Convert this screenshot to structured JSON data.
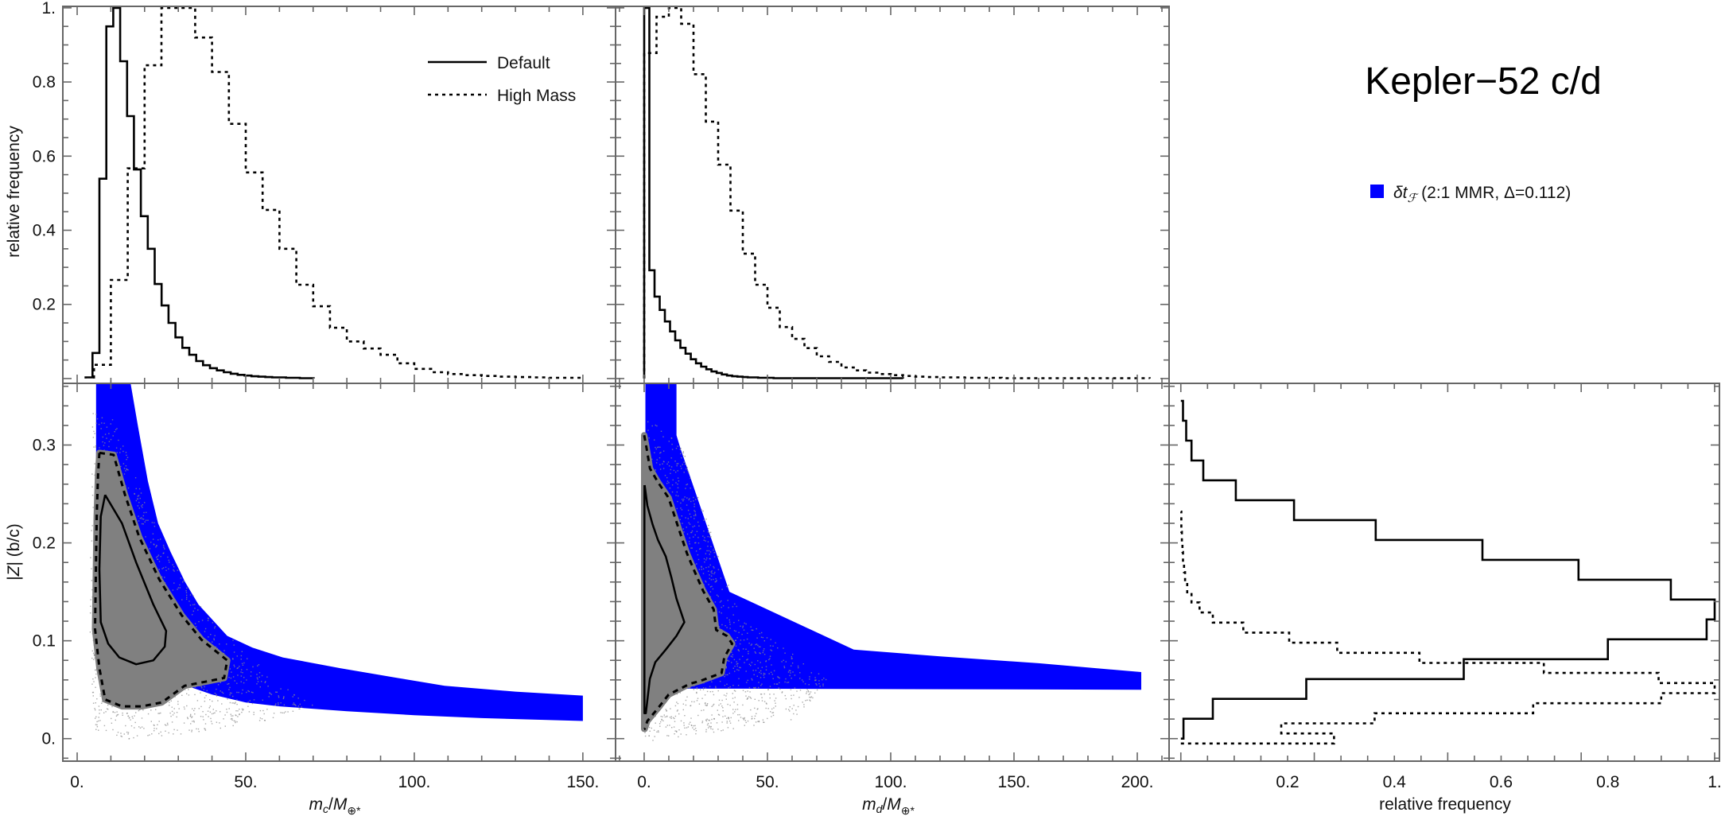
{
  "title": "Kepler−52 c/d",
  "legend": {
    "series": [
      {
        "name": "Default",
        "style": "solid"
      },
      {
        "name": "High Mass",
        "style": "dashed"
      }
    ],
    "band": {
      "symbol": "δt",
      "sub": "ℱ",
      "text": " (2:1 MMR, Δ=0.112)",
      "color": "#0000ff"
    }
  },
  "colors": {
    "band": "#0000ff",
    "samples": "#808080",
    "lines": "#000000",
    "frame": "#666666"
  },
  "chart_data": [
    {
      "id": "hist-mc",
      "type": "histogram",
      "orientation": "vertical",
      "xlim": [
        -4.25,
        159.7
      ],
      "ylim": [
        -0.013,
        1.004
      ],
      "ylabel": "relative frequency",
      "yticks": [
        {
          "v": 0.2,
          "label": "0.2"
        },
        {
          "v": 0.4,
          "label": "0.4"
        },
        {
          "v": 0.6,
          "label": "0.6"
        },
        {
          "v": 0.8,
          "label": "0.8"
        },
        {
          "v": 1.0,
          "label": "1."
        }
      ],
      "series": [
        {
          "name": "Default",
          "style": "solid",
          "bin_start": 2.5,
          "bin_width": 2.05,
          "values": [
            0.003,
            0.069,
            0.539,
            0.95,
            1.0,
            0.856,
            0.708,
            0.564,
            0.438,
            0.35,
            0.255,
            0.197,
            0.15,
            0.111,
            0.083,
            0.064,
            0.047,
            0.036,
            0.028,
            0.022,
            0.017,
            0.013,
            0.01,
            0.008,
            0.006,
            0.005,
            0.004,
            0.003,
            0.003,
            0.002,
            0.002,
            0.001,
            0.001
          ]
        },
        {
          "name": "High Mass",
          "style": "dashed",
          "bin_start": 5,
          "bin_width": 5,
          "values": [
            0.037,
            0.266,
            0.567,
            0.845,
            1.0,
            1.0,
            0.92,
            0.827,
            0.687,
            0.556,
            0.455,
            0.35,
            0.253,
            0.195,
            0.137,
            0.1,
            0.081,
            0.064,
            0.041,
            0.026,
            0.017,
            0.012,
            0.009,
            0.007,
            0.005,
            0.004,
            0.003,
            0.002,
            0.002
          ]
        }
      ]
    },
    {
      "id": "hist-md",
      "type": "histogram",
      "orientation": "vertical",
      "xlim": [
        -11.6,
        212.9
      ],
      "ylim": [
        -0.013,
        1.004
      ],
      "series": [
        {
          "name": "Default",
          "style": "solid",
          "bin_start": 0,
          "bin_width": 2.1,
          "values": [
            1.0,
            0.292,
            0.221,
            0.185,
            0.154,
            0.127,
            0.103,
            0.083,
            0.067,
            0.052,
            0.041,
            0.032,
            0.025,
            0.019,
            0.015,
            0.011,
            0.008,
            0.006,
            0.005,
            0.004,
            0.003,
            0.003,
            0.002,
            0.002,
            0.002,
            0.001,
            0.001,
            0.001,
            0.001,
            0.001,
            0.001,
            0.001,
            0.001,
            0.001,
            0.001,
            0.001,
            0.001,
            0.001,
            0.001,
            0.001,
            0.001,
            0.001,
            0.001,
            0.001,
            0.001,
            0.001,
            0.001,
            0.001,
            0.001,
            0.001
          ]
        },
        {
          "name": "High Mass",
          "style": "dashed",
          "bin_start": 0,
          "bin_width": 5,
          "values": [
            0.878,
            0.976,
            1.0,
            0.957,
            0.821,
            0.693,
            0.577,
            0.453,
            0.337,
            0.253,
            0.191,
            0.139,
            0.107,
            0.082,
            0.06,
            0.045,
            0.03,
            0.022,
            0.016,
            0.012,
            0.009,
            0.007,
            0.005,
            0.004,
            0.003,
            0.003,
            0.002,
            0.002,
            0.002,
            0.001,
            0.001,
            0.001,
            0.001,
            0.001,
            0.001,
            0.001,
            0.001,
            0.001,
            0.001,
            0.001,
            0.001
          ]
        }
      ]
    },
    {
      "id": "scatter-mc-z",
      "type": "scatter",
      "xlim": [
        -4.25,
        159.7
      ],
      "ylim": [
        -0.023,
        0.363
      ],
      "ylabel": {
        "pre": "|",
        "var": "Z",
        "post": "| (b/c)"
      },
      "xlabel": {
        "m": "m",
        "sub": "c",
        "mid": "/",
        "M": "M",
        "sub2": "⊕*"
      },
      "xticks": [
        {
          "v": 0,
          "label": "0."
        },
        {
          "v": 50,
          "label": "50."
        },
        {
          "v": 100,
          "label": "100."
        },
        {
          "v": 150,
          "label": "150."
        }
      ],
      "yticks": [
        {
          "v": 0,
          "label": "0."
        },
        {
          "v": 0.1,
          "label": "0.1"
        },
        {
          "v": 0.2,
          "label": "0.2"
        },
        {
          "v": 0.3,
          "label": "0.3"
        }
      ],
      "band_upper": [
        [
          15.8,
          0.364
        ],
        [
          18,
          0.32
        ],
        [
          21,
          0.263
        ],
        [
          24,
          0.22
        ],
        [
          27.7,
          0.191
        ],
        [
          32,
          0.16
        ],
        [
          36,
          0.137
        ],
        [
          44.5,
          0.105
        ],
        [
          52,
          0.093
        ],
        [
          61,
          0.083
        ],
        [
          78,
          0.072
        ],
        [
          95,
          0.062
        ],
        [
          109,
          0.054
        ],
        [
          130,
          0.048
        ],
        [
          150,
          0.044
        ]
      ],
      "band_lower": [
        [
          150,
          0.018
        ],
        [
          120,
          0.021
        ],
        [
          100,
          0.024
        ],
        [
          80,
          0.028
        ],
        [
          60,
          0.033
        ],
        [
          50,
          0.037
        ],
        [
          40,
          0.045
        ],
        [
          30,
          0.057
        ],
        [
          20,
          0.085
        ],
        [
          12,
          0.14
        ],
        [
          8,
          0.2
        ],
        [
          5.6,
          0.25
        ],
        [
          5.6,
          0.364
        ]
      ],
      "sample_envelope": [
        [
          4.5,
          0.34
        ],
        [
          10,
          0.33
        ],
        [
          14,
          0.3
        ],
        [
          20,
          0.24
        ],
        [
          30,
          0.17
        ],
        [
          40,
          0.12
        ],
        [
          50,
          0.09
        ],
        [
          58,
          0.06
        ],
        [
          70,
          0.035
        ],
        [
          60,
          0.022
        ],
        [
          45,
          0.012
        ],
        [
          30,
          0.005
        ],
        [
          15,
          0.0
        ],
        [
          5,
          0.01
        ],
        [
          3.5,
          0.1
        ],
        [
          4,
          0.25
        ]
      ],
      "contour_outer": [
        [
          6.6,
          0.292
        ],
        [
          10.8,
          0.29
        ],
        [
          14.2,
          0.249
        ],
        [
          18.4,
          0.206
        ],
        [
          24.3,
          0.163
        ],
        [
          31,
          0.126
        ],
        [
          36.9,
          0.101
        ],
        [
          44.5,
          0.08
        ],
        [
          43.6,
          0.062
        ],
        [
          37.8,
          0.058
        ],
        [
          31.9,
          0.054
        ],
        [
          25.1,
          0.037
        ],
        [
          19.2,
          0.033
        ],
        [
          13.3,
          0.033
        ],
        [
          8.3,
          0.04
        ],
        [
          6.6,
          0.072
        ],
        [
          5.3,
          0.112
        ],
        [
          5.8,
          0.227
        ],
        [
          6.2,
          0.27
        ],
        [
          6.6,
          0.292
        ]
      ],
      "contour_inner": [
        [
          8.3,
          0.249
        ],
        [
          13.3,
          0.22
        ],
        [
          17.5,
          0.18
        ],
        [
          22.6,
          0.137
        ],
        [
          26.4,
          0.11
        ],
        [
          26,
          0.094
        ],
        [
          22.6,
          0.08
        ],
        [
          17.5,
          0.076
        ],
        [
          12.5,
          0.083
        ],
        [
          9.2,
          0.097
        ],
        [
          7,
          0.119
        ],
        [
          6.6,
          0.173
        ],
        [
          7,
          0.227
        ],
        [
          8.3,
          0.249
        ]
      ]
    },
    {
      "id": "scatter-md-z",
      "type": "scatter",
      "xlim": [
        -11.6,
        212.9
      ],
      "ylim": [
        -0.023,
        0.363
      ],
      "xlabel": {
        "m": "m",
        "sub": "d",
        "mid": "/",
        "M": "M",
        "sub2": "⊕*"
      },
      "xticks": [
        {
          "v": 0,
          "label": "0."
        },
        {
          "v": 50,
          "label": "50."
        },
        {
          "v": 100,
          "label": "100."
        },
        {
          "v": 150,
          "label": "150."
        },
        {
          "v": 200,
          "label": "200."
        }
      ],
      "band_upper": [
        [
          13.1,
          0.364
        ],
        [
          13.1,
          0.31
        ],
        [
          14.8,
          0.296
        ],
        [
          34.6,
          0.15
        ],
        [
          85,
          0.091
        ],
        [
          120,
          0.084
        ],
        [
          160,
          0.077
        ],
        [
          201.6,
          0.068
        ]
      ],
      "band_lower": [
        [
          201.6,
          0.05
        ],
        [
          40,
          0.051
        ],
        [
          0.5,
          0.051
        ],
        [
          0.5,
          0.364
        ]
      ],
      "sample_envelope": [
        [
          0,
          0.33
        ],
        [
          15,
          0.3
        ],
        [
          35,
          0.15
        ],
        [
          42,
          0.12
        ],
        [
          75,
          0.06
        ],
        [
          60,
          0.02
        ],
        [
          30,
          0.008
        ],
        [
          10,
          0.0
        ],
        [
          0,
          -0.002
        ]
      ],
      "contour_outer": [
        [
          0,
          0.31
        ],
        [
          0.75,
          0.3
        ],
        [
          2.37,
          0.276
        ],
        [
          5.6,
          0.262
        ],
        [
          9.9,
          0.246
        ],
        [
          14.2,
          0.213
        ],
        [
          17.4,
          0.189
        ],
        [
          20.6,
          0.17
        ],
        [
          23.9,
          0.151
        ],
        [
          28.2,
          0.132
        ],
        [
          29.2,
          0.111
        ],
        [
          33.5,
          0.105
        ],
        [
          35.7,
          0.097
        ],
        [
          32.5,
          0.083
        ],
        [
          31.4,
          0.067
        ],
        [
          22.8,
          0.059
        ],
        [
          18.5,
          0.056
        ],
        [
          9.9,
          0.045
        ],
        [
          5.6,
          0.031
        ],
        [
          1.3,
          0.018
        ],
        [
          0.2,
          0.01
        ],
        [
          0,
          0.01
        ]
      ],
      "contour_inner": [
        [
          0.2,
          0.259
        ],
        [
          1.3,
          0.238
        ],
        [
          3.4,
          0.219
        ],
        [
          5.6,
          0.203
        ],
        [
          8.8,
          0.186
        ],
        [
          11,
          0.165
        ],
        [
          13.1,
          0.143
        ],
        [
          16.3,
          0.119
        ],
        [
          13.1,
          0.105
        ],
        [
          8.8,
          0.091
        ],
        [
          4.5,
          0.078
        ],
        [
          2.3,
          0.061
        ],
        [
          0.7,
          0.026
        ],
        [
          0.1,
          0.026
        ],
        [
          0.1,
          0.259
        ]
      ]
    },
    {
      "id": "hist-z",
      "type": "histogram",
      "orientation": "horizontal",
      "xlim": [
        -0.022,
        1.009
      ],
      "ylim": [
        -0.023,
        0.363
      ],
      "xlabel": "relative frequency",
      "xticks": [
        {
          "v": 0.2,
          "label": "0.2"
        },
        {
          "v": 0.4,
          "label": "0.4"
        },
        {
          "v": 0.6,
          "label": "0.6"
        },
        {
          "v": 0.8,
          "label": "0.8"
        },
        {
          "v": 1.0,
          "label": "1."
        }
      ],
      "series": [
        {
          "name": "Default",
          "style": "solid",
          "bin_start": 0.0,
          "bin_width": 0.0203,
          "values": [
            0.005,
            0.06,
            0.235,
            0.53,
            0.8,
            0.985,
            1.0,
            0.918,
            0.745,
            0.565,
            0.365,
            0.212,
            0.103,
            0.042,
            0.02,
            0.01,
            0.004
          ]
        },
        {
          "name": "High Mass",
          "style": "dashed",
          "bin_start": -0.005,
          "bin_width": 0.0103,
          "values": [
            0.287,
            0.188,
            0.363,
            0.66,
            0.9,
            1.0,
            0.895,
            0.68,
            0.447,
            0.293,
            0.203,
            0.117,
            0.06,
            0.035,
            0.02,
            0.012,
            0.008,
            0.006,
            0.004,
            0.003,
            0.002,
            0.001,
            0.001
          ]
        }
      ]
    }
  ]
}
